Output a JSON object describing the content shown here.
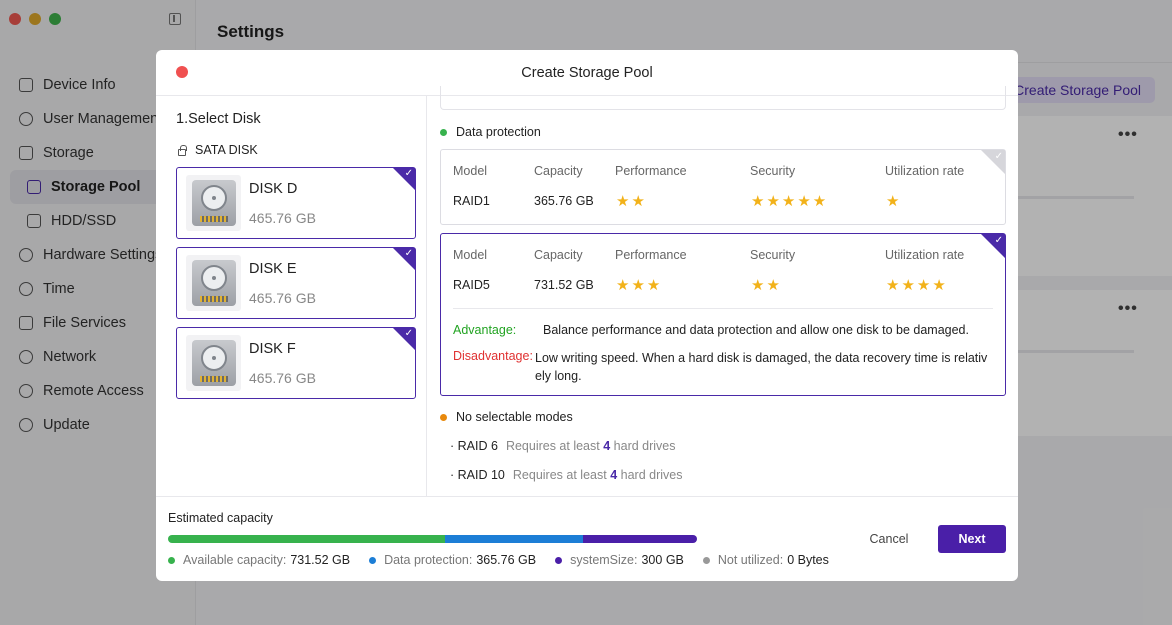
{
  "app": {
    "title": "Settings",
    "create_pool_button": "Create Storage Pool",
    "more_label": "•••",
    "colors": {
      "accent": "#4a2aa8",
      "close": "#f05050",
      "star": "#f2b21a"
    }
  },
  "sidebar": {
    "items": [
      {
        "label": "Device Info",
        "icon": "info-icon"
      },
      {
        "label": "User Management",
        "icon": "user-icon"
      },
      {
        "label": "Storage",
        "icon": "storage-icon"
      },
      {
        "label": "Storage Pool",
        "icon": "pool-icon",
        "active": true
      },
      {
        "label": "HDD/SSD",
        "icon": "hdd-icon"
      },
      {
        "label": "Hardware Settings",
        "icon": "hardware-icon"
      },
      {
        "label": "Time",
        "icon": "clock-icon"
      },
      {
        "label": "File Services",
        "icon": "file-icon"
      },
      {
        "label": "Network",
        "icon": "globe-icon"
      },
      {
        "label": "Remote Access",
        "icon": "antenna-icon"
      },
      {
        "label": "Update",
        "icon": "update-icon"
      }
    ]
  },
  "modal": {
    "title": "Create Storage Pool",
    "step_title": "1.Select Disk",
    "disk_type": "SATA DISK",
    "disks": [
      {
        "name": "DISK D",
        "size": "465.76 GB",
        "selected": true
      },
      {
        "name": "DISK E",
        "size": "465.76 GB",
        "selected": true
      },
      {
        "name": "DISK F",
        "size": "465.76 GB",
        "selected": true
      }
    ],
    "data_protection_label": "Data protection",
    "columns": [
      "Model",
      "Capacity",
      "Performance",
      "Security",
      "Utilization rate"
    ],
    "raid_options": [
      {
        "model": "RAID1",
        "capacity": "365.76 GB",
        "performance": 2,
        "security": 5,
        "utilization": 1,
        "selected": false
      },
      {
        "model": "RAID5",
        "capacity": "731.52 GB",
        "performance": 3,
        "security": 2,
        "utilization": 4,
        "selected": true,
        "advantage_label": "Advantage:",
        "advantage": "Balance performance and data protection and allow one disk to be damaged.",
        "disadvantage_label": "Disadvantage:",
        "disadvantage": "Low writing speed. When a hard disk is damaged, the data recovery time is relativ ely long."
      }
    ],
    "no_selectable_label": "No selectable modes",
    "no_selectable": [
      {
        "name": "· RAID 6",
        "prefix": "Requires at least",
        "count": "4",
        "suffix": "hard drives"
      },
      {
        "name": "· RAID 10",
        "prefix": "Requires at least",
        "count": "4",
        "suffix": "hard drives"
      }
    ],
    "footer": {
      "estimated_label": "Estimated capacity",
      "segments": [
        {
          "name": "Available capacity:",
          "value": "731.52 GB",
          "fraction": 0.528,
          "color": "#37b24d"
        },
        {
          "name": "Data protection:",
          "value": "365.76 GB",
          "fraction": 0.264,
          "color": "#1c7ed6"
        },
        {
          "name": "systemSize:",
          "value": "300 GB",
          "fraction": 0.217,
          "color": "#4a1fa8"
        },
        {
          "name": "Not utilized:",
          "value": "0 Bytes",
          "fraction": 0,
          "color": "#999999"
        }
      ],
      "cancel": "Cancel",
      "next": "Next"
    }
  }
}
